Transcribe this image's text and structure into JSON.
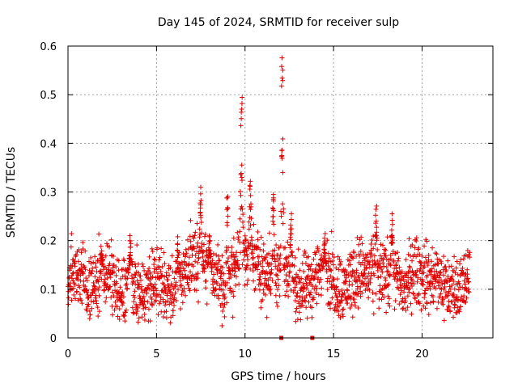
{
  "chart_data": {
    "type": "scatter",
    "title": "Day 145 of 2024, SRMTID for receiver sulp",
    "xlabel": "GPS time / hours",
    "ylabel": "SRMTID / TECUs",
    "xlim": [
      0,
      24
    ],
    "ylim": [
      0,
      0.6
    ],
    "xticks": [
      0,
      5,
      10,
      15,
      20
    ],
    "yticks": [
      0,
      0.1,
      0.2,
      0.3,
      0.4,
      0.5,
      0.6
    ],
    "xtick_labels": [
      "0",
      "5",
      "10",
      "15",
      "20"
    ],
    "ytick_labels": [
      "0",
      "0.1",
      "0.2",
      "0.3",
      "0.4",
      "0.5",
      "0.6"
    ],
    "grid": true,
    "marker": "plus",
    "color": "#e00000",
    "x_data_range": [
      0,
      22.7
    ],
    "baseline_markers": [
      {
        "x": 12.05,
        "y": 0
      },
      {
        "x": 13.8,
        "y": 0
      }
    ],
    "envelope": [
      {
        "x": 0.0,
        "y": 0.12
      },
      {
        "x": 0.5,
        "y": 0.14
      },
      {
        "x": 1.0,
        "y": 0.11
      },
      {
        "x": 1.5,
        "y": 0.1
      },
      {
        "x": 2.0,
        "y": 0.14
      },
      {
        "x": 2.5,
        "y": 0.12
      },
      {
        "x": 3.0,
        "y": 0.08
      },
      {
        "x": 3.5,
        "y": 0.13
      },
      {
        "x": 4.0,
        "y": 0.09
      },
      {
        "x": 4.5,
        "y": 0.1
      },
      {
        "x": 5.0,
        "y": 0.12
      },
      {
        "x": 5.5,
        "y": 0.1
      },
      {
        "x": 6.0,
        "y": 0.1
      },
      {
        "x": 6.5,
        "y": 0.13
      },
      {
        "x": 7.0,
        "y": 0.17
      },
      {
        "x": 7.5,
        "y": 0.16
      },
      {
        "x": 8.0,
        "y": 0.14
      },
      {
        "x": 8.5,
        "y": 0.12
      },
      {
        "x": 9.0,
        "y": 0.1
      },
      {
        "x": 9.5,
        "y": 0.16
      },
      {
        "x": 10.0,
        "y": 0.18
      },
      {
        "x": 10.5,
        "y": 0.16
      },
      {
        "x": 11.0,
        "y": 0.14
      },
      {
        "x": 11.5,
        "y": 0.13
      },
      {
        "x": 12.0,
        "y": 0.15
      },
      {
        "x": 12.5,
        "y": 0.12
      },
      {
        "x": 13.0,
        "y": 0.1
      },
      {
        "x": 13.5,
        "y": 0.1
      },
      {
        "x": 14.0,
        "y": 0.13
      },
      {
        "x": 14.5,
        "y": 0.14
      },
      {
        "x": 15.0,
        "y": 0.12
      },
      {
        "x": 15.5,
        "y": 0.1
      },
      {
        "x": 16.0,
        "y": 0.12
      },
      {
        "x": 16.5,
        "y": 0.14
      },
      {
        "x": 17.0,
        "y": 0.13
      },
      {
        "x": 17.5,
        "y": 0.12
      },
      {
        "x": 18.0,
        "y": 0.13
      },
      {
        "x": 18.5,
        "y": 0.12
      },
      {
        "x": 19.0,
        "y": 0.1
      },
      {
        "x": 19.5,
        "y": 0.14
      },
      {
        "x": 20.0,
        "y": 0.13
      },
      {
        "x": 20.5,
        "y": 0.12
      },
      {
        "x": 21.0,
        "y": 0.12
      },
      {
        "x": 21.5,
        "y": 0.1
      },
      {
        "x": 22.0,
        "y": 0.1
      },
      {
        "x": 22.7,
        "y": 0.12
      }
    ],
    "spikes": [
      {
        "x": 7.5,
        "peak": 0.31
      },
      {
        "x": 9.0,
        "peak": 0.3
      },
      {
        "x": 9.8,
        "peak": 0.5
      },
      {
        "x": 10.3,
        "peak": 0.33
      },
      {
        "x": 11.6,
        "peak": 0.3
      },
      {
        "x": 12.1,
        "peak": 0.58
      },
      {
        "x": 12.6,
        "peak": 0.26
      },
      {
        "x": 14.5,
        "peak": 0.22
      },
      {
        "x": 17.4,
        "peak": 0.28
      },
      {
        "x": 18.3,
        "peak": 0.26
      },
      {
        "x": 3.5,
        "peak": 0.22
      },
      {
        "x": 1.9,
        "peak": 0.19
      },
      {
        "x": 6.2,
        "peak": 0.21
      },
      {
        "x": 8.0,
        "peak": 0.22
      }
    ],
    "min_point": {
      "x": 8.7,
      "y": 0.025
    }
  }
}
